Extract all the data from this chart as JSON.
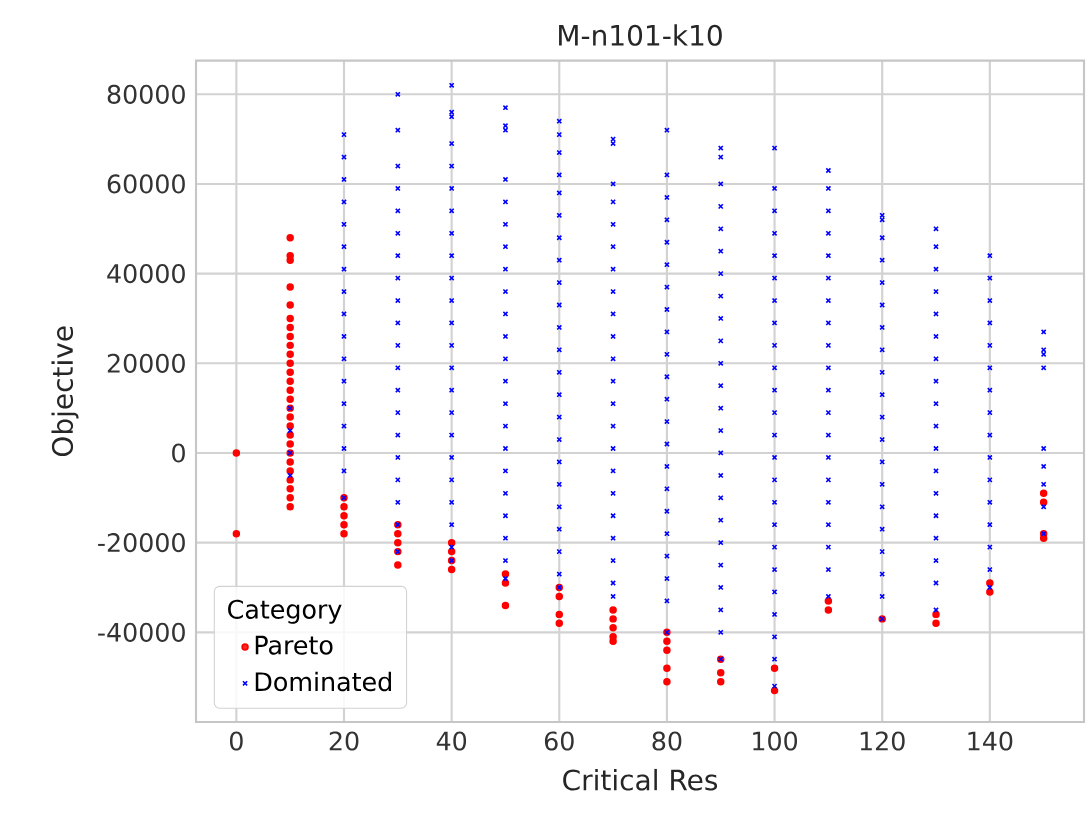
{
  "chart_data": {
    "type": "scatter",
    "title": "M-n101-k10",
    "xlabel": "Critical Res",
    "ylabel": "Objective",
    "legend_title": "Category",
    "xlim": [
      -7.5,
      157.5
    ],
    "xticks": [
      0,
      20,
      40,
      60,
      80,
      100,
      120,
      140
    ],
    "ylim": [
      -60000,
      87500
    ],
    "yticks": [
      -40000,
      -20000,
      0,
      20000,
      40000,
      60000,
      80000
    ],
    "grid": true,
    "legend": "bottom left",
    "series": [
      {
        "name": "Pareto",
        "color": "#ff0000",
        "marker": "circle",
        "x": [
          0,
          0,
          10,
          10,
          10,
          10,
          10,
          10,
          10,
          10,
          10,
          10,
          10,
          10,
          10,
          10,
          10,
          10,
          10,
          10,
          10,
          10,
          10,
          10,
          10,
          10,
          10,
          10,
          10,
          20,
          20,
          20,
          20,
          20,
          30,
          30,
          30,
          30,
          30,
          40,
          40,
          40,
          40,
          50,
          50,
          50,
          60,
          60,
          60,
          60,
          70,
          70,
          70,
          70,
          70,
          80,
          80,
          80,
          80,
          80,
          90,
          90,
          90,
          100,
          100,
          110,
          110,
          120,
          130,
          130,
          140,
          140,
          150,
          150,
          150,
          150
        ],
        "values": [
          0,
          -18000,
          48000,
          44000,
          43000,
          37000,
          33000,
          30000,
          28000,
          26000,
          24000,
          22000,
          20000,
          18000,
          16000,
          14000,
          12000,
          10000,
          8000,
          6000,
          4000,
          2000,
          0,
          -2000,
          -4000,
          -6000,
          -8000,
          -10000,
          -12000,
          -10000,
          -12000,
          -14000,
          -16000,
          -18000,
          -16000,
          -18000,
          -20000,
          -22000,
          -25000,
          -20000,
          -22000,
          -24000,
          -26000,
          -27000,
          -29000,
          -34000,
          -30000,
          -32000,
          -36000,
          -38000,
          -35000,
          -37000,
          -39000,
          -41000,
          -42000,
          -40000,
          -42000,
          -44000,
          -48000,
          -51000,
          -46000,
          -49000,
          -51000,
          -48000,
          -53000,
          -33000,
          -35000,
          -37000,
          -36000,
          -38000,
          -29000,
          -31000,
          -9000,
          -11000,
          -18000,
          -19000
        ]
      },
      {
        "name": "Dominated",
        "color": "#0000ff",
        "marker": "cross",
        "x": [
          10,
          10,
          10,
          10,
          20,
          20,
          20,
          20,
          20,
          20,
          20,
          20,
          20,
          20,
          20,
          20,
          20,
          20,
          20,
          20,
          20,
          30,
          30,
          30,
          30,
          30,
          30,
          30,
          30,
          30,
          30,
          30,
          30,
          30,
          30,
          30,
          30,
          30,
          30,
          30,
          30,
          40,
          40,
          40,
          40,
          40,
          40,
          40,
          40,
          40,
          40,
          40,
          40,
          40,
          40,
          40,
          40,
          40,
          40,
          40,
          40,
          40,
          40,
          40,
          50,
          50,
          50,
          50,
          50,
          50,
          50,
          50,
          50,
          50,
          50,
          50,
          50,
          50,
          50,
          50,
          50,
          50,
          50,
          50,
          50,
          50,
          60,
          60,
          60,
          60,
          60,
          60,
          60,
          60,
          60,
          60,
          60,
          60,
          60,
          60,
          60,
          60,
          60,
          60,
          60,
          60,
          60,
          60,
          60,
          70,
          70,
          70,
          70,
          70,
          70,
          70,
          70,
          70,
          70,
          70,
          70,
          70,
          70,
          70,
          70,
          70,
          70,
          70,
          70,
          70,
          70,
          80,
          80,
          80,
          80,
          80,
          80,
          80,
          80,
          80,
          80,
          80,
          80,
          80,
          80,
          80,
          80,
          80,
          80,
          80,
          80,
          80,
          80,
          90,
          90,
          90,
          90,
          90,
          90,
          90,
          90,
          90,
          90,
          90,
          90,
          90,
          90,
          90,
          90,
          90,
          90,
          90,
          90,
          90,
          90,
          90,
          90,
          100,
          100,
          100,
          100,
          100,
          100,
          100,
          100,
          100,
          100,
          100,
          100,
          100,
          100,
          100,
          100,
          100,
          100,
          100,
          100,
          100,
          100,
          100,
          100,
          110,
          110,
          110,
          110,
          110,
          110,
          110,
          110,
          110,
          110,
          110,
          110,
          110,
          110,
          110,
          110,
          110,
          110,
          110,
          110,
          120,
          120,
          120,
          120,
          120,
          120,
          120,
          120,
          120,
          120,
          120,
          120,
          120,
          120,
          120,
          120,
          120,
          120,
          120,
          120,
          130,
          130,
          130,
          130,
          130,
          130,
          130,
          130,
          130,
          130,
          130,
          130,
          130,
          130,
          130,
          130,
          130,
          130,
          140,
          140,
          140,
          140,
          140,
          140,
          140,
          140,
          140,
          140,
          140,
          140,
          140,
          140,
          140,
          140,
          150,
          150,
          150,
          150,
          150,
          150,
          150,
          150,
          150
        ],
        "values": [
          10000,
          5000,
          0,
          -5000,
          71000,
          66000,
          61000,
          56000,
          51000,
          46000,
          41000,
          36000,
          31000,
          26000,
          21000,
          16000,
          11000,
          6000,
          1000,
          -4000,
          -10000,
          80000,
          72000,
          64000,
          59000,
          54000,
          49000,
          44000,
          39000,
          34000,
          29000,
          24000,
          19000,
          14000,
          9000,
          4000,
          -1000,
          -6000,
          -11000,
          -16000,
          -22000,
          82000,
          76000,
          75000,
          69000,
          64000,
          59000,
          54000,
          49000,
          44000,
          39000,
          34000,
          29000,
          24000,
          19000,
          14000,
          9000,
          4000,
          -1000,
          -6000,
          -11000,
          -16000,
          -21000,
          -24000,
          77000,
          73000,
          72000,
          61000,
          56000,
          51000,
          46000,
          41000,
          36000,
          31000,
          26000,
          21000,
          16000,
          11000,
          6000,
          1000,
          -4000,
          -9000,
          -14000,
          -19000,
          -24000,
          -28000,
          74000,
          71000,
          67000,
          62000,
          58000,
          53000,
          48000,
          43000,
          38000,
          33000,
          28000,
          23000,
          18000,
          13000,
          8000,
          3000,
          -2000,
          -7000,
          -12000,
          -17000,
          -22000,
          -27000,
          -30000,
          70000,
          69000,
          60000,
          56000,
          51000,
          46000,
          41000,
          36000,
          31000,
          26000,
          21000,
          16000,
          11000,
          6000,
          1000,
          -4000,
          -9000,
          -14000,
          -19000,
          -24000,
          -29000,
          -32000,
          72000,
          62000,
          57000,
          52000,
          47000,
          42000,
          37000,
          32000,
          27000,
          22000,
          17000,
          12000,
          7000,
          2000,
          -3000,
          -8000,
          -13000,
          -18000,
          -23000,
          -28000,
          -33000,
          -40000,
          68000,
          66000,
          60000,
          55000,
          50000,
          45000,
          40000,
          35000,
          30000,
          25000,
          20000,
          15000,
          10000,
          5000,
          0,
          -5000,
          -10000,
          -15000,
          -20000,
          -25000,
          -30000,
          -35000,
          -40000,
          -46000,
          68000,
          59000,
          54000,
          49000,
          44000,
          39000,
          34000,
          29000,
          24000,
          19000,
          14000,
          9000,
          4000,
          -1000,
          -6000,
          -11000,
          -16000,
          -21000,
          -26000,
          -31000,
          -36000,
          -41000,
          -46000,
          -52000,
          63000,
          59000,
          54000,
          49000,
          44000,
          39000,
          34000,
          29000,
          24000,
          19000,
          14000,
          9000,
          4000,
          -1000,
          -6000,
          -11000,
          -16000,
          -21000,
          -26000,
          -32000,
          53000,
          52000,
          48000,
          43000,
          38000,
          33000,
          28000,
          23000,
          18000,
          13000,
          8000,
          3000,
          -2000,
          -7000,
          -12000,
          -17000,
          -22000,
          -27000,
          -32000,
          -37000,
          50000,
          46000,
          41000,
          36000,
          31000,
          26000,
          21000,
          16000,
          11000,
          6000,
          1000,
          -4000,
          -9000,
          -14000,
          -19000,
          -24000,
          -29000,
          -35000,
          44000,
          39000,
          34000,
          29000,
          24000,
          19000,
          14000,
          9000,
          4000,
          -1000,
          -6000,
          -11000,
          -16000,
          -21000,
          -26000,
          -30000,
          27000,
          23000,
          22000,
          19000,
          1000,
          -3000,
          -7000,
          -12000,
          -18000
        ]
      }
    ]
  }
}
